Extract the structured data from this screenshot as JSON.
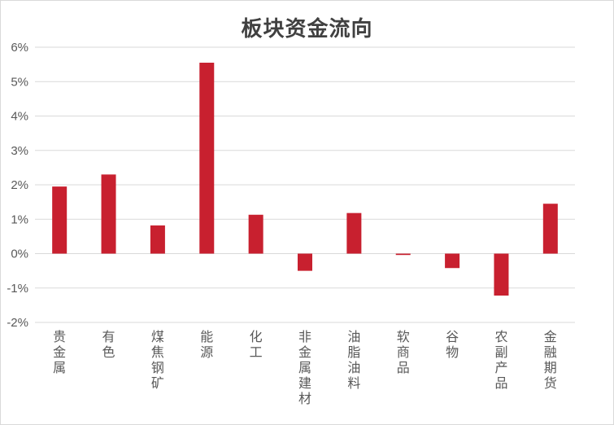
{
  "chart_data": {
    "type": "bar",
    "title": "板块资金流向",
    "categories": [
      "贵金属",
      "有色",
      "煤焦钢矿",
      "能源",
      "化工",
      "非金属建材",
      "油脂油料",
      "软商品",
      "谷物",
      "农副产品",
      "金融期货"
    ],
    "values": [
      1.95,
      2.3,
      0.82,
      5.55,
      1.13,
      -0.5,
      1.18,
      -0.04,
      -0.42,
      -1.22,
      1.45
    ],
    "ylim": [
      -2,
      6
    ],
    "yticks": [
      "-2%",
      "-1%",
      "0%",
      "1%",
      "2%",
      "3%",
      "4%",
      "5%",
      "6%"
    ],
    "xlabel": "",
    "ylabel": "",
    "grid": true,
    "bar_color": "#c8202f",
    "grid_color": "#d9d9d9"
  }
}
